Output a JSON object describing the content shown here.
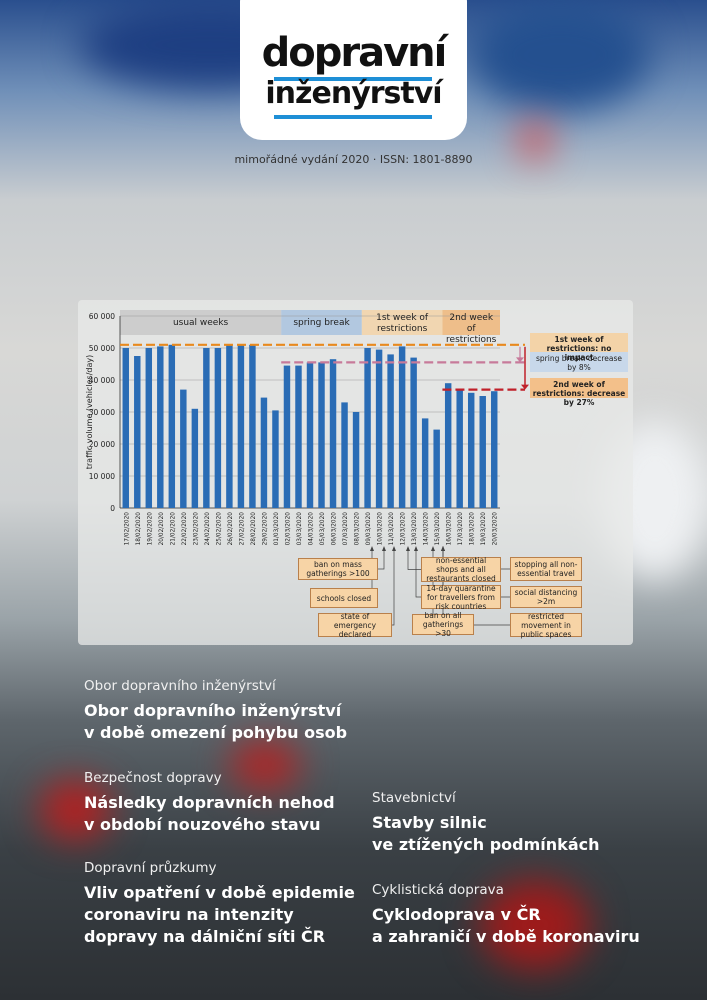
{
  "logo": {
    "lines": [
      "dopravní",
      "inženýrství"
    ]
  },
  "issue": "mimořádné vydání 2020 · ISSN: 1801-8890",
  "chart_data": {
    "type": "bar",
    "y_label": "traffic volume (vehicles/day)",
    "categories": [
      "17/02/2020",
      "18/02/2020",
      "19/02/2020",
      "20/02/2020",
      "21/02/2020",
      "22/02/2020",
      "23/02/2020",
      "24/02/2020",
      "25/02/2020",
      "26/02/2020",
      "27/02/2020",
      "28/02/2020",
      "29/02/2020",
      "01/03/2020",
      "02/03/2020",
      "03/03/2020",
      "04/03/2020",
      "05/03/2020",
      "06/03/2020",
      "07/03/2020",
      "08/03/2020",
      "09/03/2020",
      "10/03/2020",
      "11/03/2020",
      "12/03/2020",
      "13/03/2020",
      "14/03/2020",
      "15/03/2020",
      "16/03/2020",
      "17/03/2020",
      "18/03/2020",
      "19/03/2020",
      "20/03/2020"
    ],
    "values": [
      50000,
      47500,
      50000,
      50500,
      51000,
      37000,
      31000,
      50000,
      50000,
      51000,
      51000,
      51000,
      34500,
      30500,
      44500,
      44500,
      45500,
      45500,
      46500,
      33000,
      30000,
      50000,
      49500,
      48000,
      50500,
      47000,
      28000,
      24500,
      39000,
      37000,
      36000,
      35000,
      36500
    ],
    "color": "#2a6cb5",
    "ylim": [
      0,
      60000
    ],
    "yticks": [
      0,
      {
        "value": 10000,
        "label": "10 000"
      },
      {
        "value": 20000,
        "label": "20 000"
      },
      {
        "value": 30000,
        "label": "30 000"
      },
      {
        "value": 40000,
        "label": "40 000"
      },
      {
        "value": 50000,
        "label": "50 000"
      },
      {
        "value": 60000,
        "label": "60 000"
      }
    ],
    "grid": true,
    "periods": [
      "usual weeks",
      "spring break",
      "1st week of restrictions",
      "2nd week of restrictions"
    ],
    "reference_lines": [
      {
        "value": 51000,
        "color": "#e8891e",
        "label": "1st week of restrictions: no impact"
      },
      {
        "value": 45500,
        "color": "#c77a9a",
        "label": "spring break: decrease by 8%"
      },
      {
        "value": 37000,
        "color": "#c0202a",
        "label": "2nd week of restrictions: decrease by 27%"
      }
    ],
    "annotations": [
      "ban on mass gatherings >100",
      "schools closed",
      "state of emergency declared",
      "non-essential shops and all restaurants closed",
      "14-day quarantine for travellers from risk countries",
      "ban on all gatherings >30",
      "stopping all non-essential travel",
      "social distancing >2m",
      "restricted movement in public spaces"
    ]
  },
  "articles": [
    {
      "section": "Obor dopravního inženýrství",
      "title": [
        "Obor dopravního inženýrství",
        "v době omezení pohybu osob"
      ]
    },
    {
      "section": "Bezpečnost dopravy",
      "title": [
        "Následky dopravních nehod",
        "v období nouzového stavu"
      ]
    },
    {
      "section": "Dopravní průzkumy",
      "title": [
        "Vliv opatření v době epidemie",
        "coronaviru na intenzity",
        "dopravy na dálniční síti ČR"
      ]
    },
    {
      "section": "Stavebnictví",
      "title": [
        "Stavby silnic",
        "ve ztížených podmínkách"
      ]
    },
    {
      "section": "Cyklistická doprava",
      "title": [
        "Cyklodoprava v ČR",
        "a zahraničí v době koronaviru"
      ]
    }
  ]
}
